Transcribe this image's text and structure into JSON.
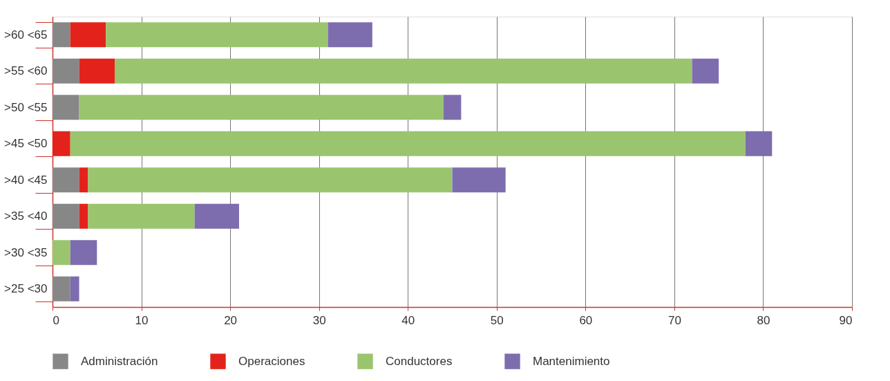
{
  "chart_data": {
    "type": "bar",
    "orientation": "horizontal",
    "stacked": true,
    "categories": [
      ">60 <65",
      ">55 <60",
      ">50 <55",
      ">45 <50",
      ">40 <45",
      ">35 <40",
      ">30 <35",
      ">25 <30"
    ],
    "series": [
      {
        "name": "Administración",
        "color": "#878787",
        "values": [
          2,
          3,
          3,
          null,
          3,
          3,
          null,
          2
        ]
      },
      {
        "name": "Operaciones",
        "color": "#e3231b",
        "values": [
          4,
          4,
          null,
          2,
          1,
          1,
          null,
          null
        ]
      },
      {
        "name": "Conductores",
        "color": "#9bc46f",
        "values": [
          25,
          65,
          41,
          76,
          41,
          12,
          2,
          null
        ]
      },
      {
        "name": "Mantenimiento",
        "color": "#7d6dae",
        "values": [
          5,
          3,
          2,
          3,
          6,
          5,
          3,
          1
        ]
      }
    ],
    "xlim": [
      0,
      90
    ],
    "xticks": [
      0,
      10,
      20,
      30,
      40,
      50,
      60,
      70,
      80,
      90
    ],
    "grid": "x",
    "legend": "bottom"
  }
}
